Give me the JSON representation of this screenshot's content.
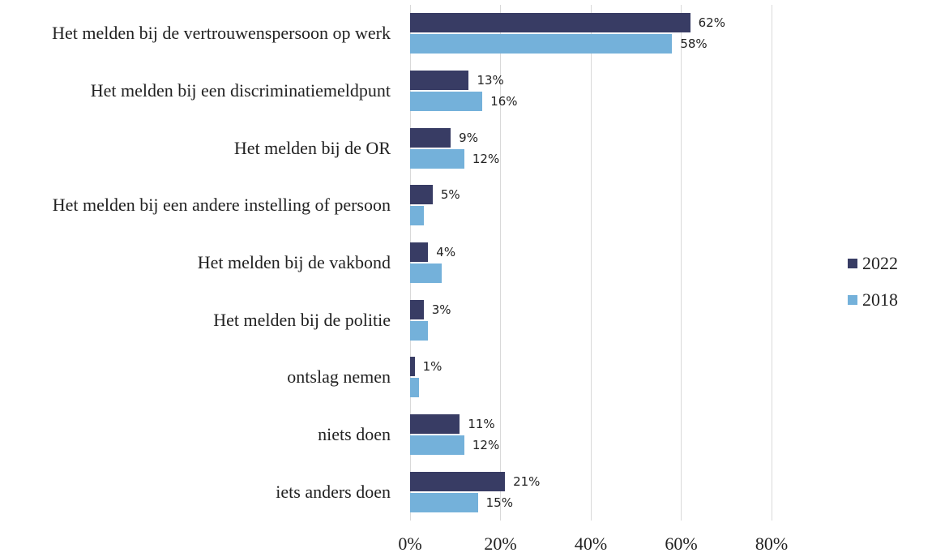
{
  "chart_data": {
    "type": "bar",
    "orientation": "horizontal",
    "categories": [
      "Het melden bij de vertrouwenspersoon op werk",
      "Het melden bij een discriminatiemeldpunt",
      "Het melden bij de OR",
      "Het melden bij een andere instelling of persoon",
      "Het melden bij de vakbond",
      "Het melden bij de politie",
      "ontslag nemen",
      "niets doen",
      "iets anders doen"
    ],
    "series": [
      {
        "name": "2022",
        "color": "#383c64",
        "values": [
          62,
          13,
          9,
          5,
          4,
          3,
          1,
          11,
          21
        ],
        "value_labels": [
          "62%",
          "13%",
          "9%",
          "5%",
          "4%",
          "3%",
          "1%",
          "11%",
          "21%"
        ]
      },
      {
        "name": "2018",
        "color": "#74b1da",
        "values": [
          58,
          16,
          12,
          3,
          7,
          4,
          2,
          12,
          15
        ],
        "value_labels": [
          "58%",
          "16%",
          "12%",
          null,
          null,
          null,
          null,
          "12%",
          "15%"
        ]
      }
    ],
    "xlim": [
      0,
      80
    ],
    "xticks": [
      {
        "value": 0,
        "label": "0%"
      },
      {
        "value": 20,
        "label": "20%"
      },
      {
        "value": 40,
        "label": "40%"
      },
      {
        "value": 60,
        "label": "60%"
      },
      {
        "value": 80,
        "label": "80%"
      }
    ],
    "grid": true,
    "legend": "right"
  }
}
